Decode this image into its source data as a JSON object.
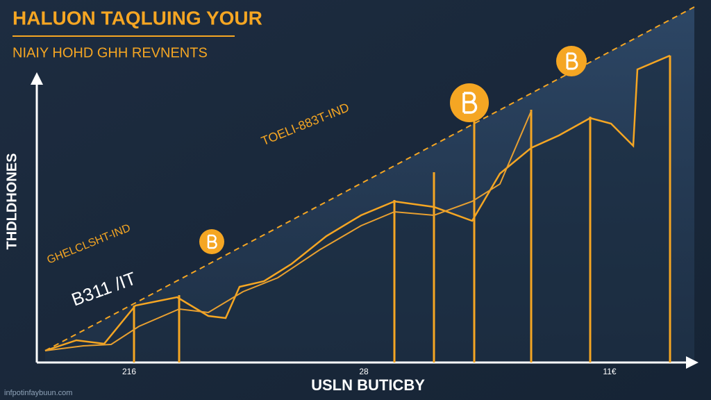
{
  "header": {
    "title": "HALUON TAQLUING YOUR",
    "subtitle": "NIAIY HOHD GHH REVNENTS"
  },
  "axes": {
    "y_label": "THDLDHONES",
    "x_label": "USLN BUTICBY",
    "x_ticks": [
      "216",
      "28",
      "11€"
    ]
  },
  "annotations": [
    "TOELI-883T-IND",
    "GHELCLSHT-IND",
    "B311 /IT"
  ],
  "footer": "infpotinfaybuun.com"
}
